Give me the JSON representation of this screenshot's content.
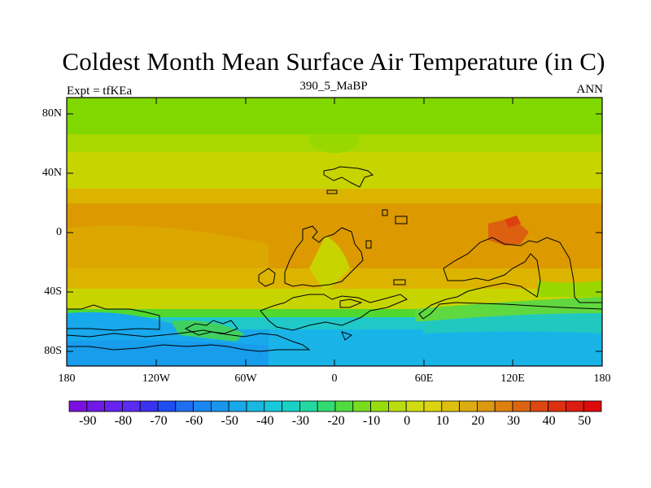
{
  "title": "Coldest Month Mean Surface Air Temperature (in C)",
  "subtitle_left": "Expt = tfKEa",
  "subtitle_center": "390_5_MaBP",
  "subtitle_right": "ANN",
  "map": {
    "lat_ticks": [
      "80N",
      "40N",
      "0",
      "40S",
      "80S"
    ],
    "lon_ticks": [
      "180",
      "120W",
      "60W",
      "0",
      "60E",
      "120E",
      "180"
    ]
  },
  "colorbar": {
    "labels": [
      "-90",
      "-80",
      "-70",
      "-60",
      "-50",
      "-40",
      "-30",
      "-20",
      "-10",
      "0",
      "10",
      "20",
      "30",
      "40",
      "50"
    ],
    "colors": [
      "#7a10e0",
      "#7018e8",
      "#6622f0",
      "#5a2cf0",
      "#3a32f0",
      "#1e4ef0",
      "#1e6ef0",
      "#1a86f0",
      "#1896ec",
      "#18a8e8",
      "#18b8e0",
      "#18c8dc",
      "#18d0c4",
      "#20d8a0",
      "#30dc70",
      "#50dc40",
      "#78dc20",
      "#98dc10",
      "#b8dc10",
      "#d0dc10",
      "#dcd410",
      "#dcc010",
      "#dcac10",
      "#dc9810",
      "#dc8010",
      "#dc6410",
      "#dc4810",
      "#dc3010",
      "#dc1c10",
      "#dc0a0a"
    ]
  }
}
